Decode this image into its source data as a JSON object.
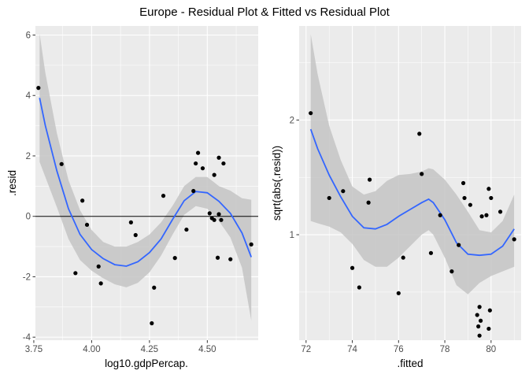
{
  "title": "Europe -  Residual Plot & Fitted vs Residual Plot",
  "colors": {
    "panel_bg": "#ebebeb",
    "grid": "#ffffff",
    "band": "#c4c4c4",
    "smooth": "#3366ff",
    "point": "#000000",
    "hline": "#000000"
  },
  "chart_data": [
    {
      "type": "scatter",
      "xlabel": "log10.gdpPercap.",
      "ylabel": ".resid",
      "xlim": [
        3.757,
        4.72
      ],
      "ylim": [
        -4.1,
        6.3
      ],
      "xticks": [
        3.75,
        4.0,
        4.25,
        4.5
      ],
      "xtick_labels": [
        "3.75",
        "4.00",
        "4.25",
        "4.50"
      ],
      "yticks": [
        -4,
        -2,
        0,
        2,
        4,
        6
      ],
      "ytick_labels": [
        "-4",
        "-2",
        "0",
        "2",
        "4",
        "6"
      ],
      "hline": 0,
      "points": [
        [
          3.77,
          4.25
        ],
        [
          3.87,
          1.73
        ],
        [
          3.93,
          -1.88
        ],
        [
          3.96,
          0.52
        ],
        [
          3.98,
          -0.28
        ],
        [
          4.03,
          -1.66
        ],
        [
          4.04,
          -2.22
        ],
        [
          4.17,
          -0.2
        ],
        [
          4.19,
          -0.62
        ],
        [
          4.26,
          -3.54
        ],
        [
          4.27,
          -2.36
        ],
        [
          4.31,
          0.68
        ],
        [
          4.36,
          -1.38
        ],
        [
          4.41,
          -0.44
        ],
        [
          4.44,
          0.84
        ],
        [
          4.45,
          1.75
        ],
        [
          4.46,
          2.1
        ],
        [
          4.48,
          1.59
        ],
        [
          4.51,
          0.1
        ],
        [
          4.52,
          -0.06
        ],
        [
          4.53,
          -0.12
        ],
        [
          4.53,
          1.37
        ],
        [
          4.545,
          -1.37
        ],
        [
          4.55,
          0.07
        ],
        [
          4.55,
          1.94
        ],
        [
          4.56,
          -0.12
        ],
        [
          4.57,
          1.75
        ],
        [
          4.6,
          -1.42
        ],
        [
          4.69,
          -0.93
        ]
      ],
      "smooth": [
        [
          3.775,
          3.92
        ],
        [
          3.8,
          3.0
        ],
        [
          3.85,
          1.5
        ],
        [
          3.9,
          0.25
        ],
        [
          3.95,
          -0.6
        ],
        [
          4.0,
          -1.1
        ],
        [
          4.05,
          -1.4
        ],
        [
          4.1,
          -1.6
        ],
        [
          4.15,
          -1.65
        ],
        [
          4.2,
          -1.5
        ],
        [
          4.25,
          -1.2
        ],
        [
          4.3,
          -0.75
        ],
        [
          4.35,
          -0.1
        ],
        [
          4.4,
          0.52
        ],
        [
          4.45,
          0.82
        ],
        [
          4.5,
          0.78
        ],
        [
          4.55,
          0.5
        ],
        [
          4.6,
          0.1
        ],
        [
          4.65,
          -0.55
        ],
        [
          4.69,
          -1.35
        ]
      ],
      "band_upper": [
        [
          3.775,
          6.05
        ],
        [
          3.8,
          4.75
        ],
        [
          3.85,
          2.75
        ],
        [
          3.9,
          1.2
        ],
        [
          3.95,
          0.2
        ],
        [
          4.0,
          -0.45
        ],
        [
          4.05,
          -0.85
        ],
        [
          4.1,
          -1.0
        ],
        [
          4.15,
          -1.0
        ],
        [
          4.2,
          -0.85
        ],
        [
          4.25,
          -0.6
        ],
        [
          4.3,
          -0.2
        ],
        [
          4.35,
          0.35
        ],
        [
          4.4,
          1.0
        ],
        [
          4.45,
          1.3
        ],
        [
          4.5,
          1.3
        ],
        [
          4.55,
          1.0
        ],
        [
          4.6,
          0.85
        ],
        [
          4.65,
          0.6
        ],
        [
          4.69,
          0.55
        ]
      ],
      "band_lower": [
        [
          3.775,
          1.8
        ],
        [
          3.8,
          1.3
        ],
        [
          3.85,
          0.3
        ],
        [
          3.9,
          -0.75
        ],
        [
          3.95,
          -1.45
        ],
        [
          4.0,
          -1.8
        ],
        [
          4.05,
          -2.05
        ],
        [
          4.1,
          -2.25
        ],
        [
          4.15,
          -2.35
        ],
        [
          4.2,
          -2.2
        ],
        [
          4.25,
          -1.85
        ],
        [
          4.3,
          -1.3
        ],
        [
          4.35,
          -0.6
        ],
        [
          4.4,
          0.05
        ],
        [
          4.45,
          0.34
        ],
        [
          4.5,
          0.25
        ],
        [
          4.55,
          -0.15
        ],
        [
          4.6,
          -0.7
        ],
        [
          4.65,
          -1.7
        ],
        [
          4.69,
          -3.45
        ]
      ]
    },
    {
      "type": "scatter",
      "xlabel": ".fitted",
      "ylabel": "sqrt(abs(.resid))",
      "xlim": [
        71.7,
        81.3
      ],
      "ylim": [
        0.08,
        2.82
      ],
      "xticks": [
        72,
        74,
        76,
        78,
        80
      ],
      "xtick_labels": [
        "72",
        "74",
        "76",
        "78",
        "80"
      ],
      "yticks": [
        1,
        2
      ],
      "ytick_labels": [
        "1",
        "2"
      ],
      "points": [
        [
          72.2,
          2.06
        ],
        [
          73.0,
          1.32
        ],
        [
          73.6,
          1.38
        ],
        [
          74.0,
          0.71
        ],
        [
          74.3,
          0.54
        ],
        [
          74.7,
          1.28
        ],
        [
          74.75,
          1.48
        ],
        [
          76.0,
          0.49
        ],
        [
          76.2,
          0.8
        ],
        [
          76.9,
          1.88
        ],
        [
          77.0,
          1.53
        ],
        [
          77.4,
          0.84
        ],
        [
          77.8,
          1.17
        ],
        [
          78.3,
          0.68
        ],
        [
          78.6,
          0.91
        ],
        [
          78.8,
          1.45
        ],
        [
          78.85,
          1.32
        ],
        [
          79.1,
          1.26
        ],
        [
          79.4,
          0.3
        ],
        [
          79.45,
          0.2
        ],
        [
          79.5,
          0.37
        ],
        [
          79.5,
          0.12
        ],
        [
          79.55,
          0.25
        ],
        [
          79.6,
          1.16
        ],
        [
          79.8,
          1.17
        ],
        [
          79.9,
          0.18
        ],
        [
          79.95,
          0.34
        ],
        [
          79.9,
          1.4
        ],
        [
          80.0,
          1.32
        ],
        [
          80.4,
          1.2
        ],
        [
          81.0,
          0.96
        ]
      ],
      "smooth": [
        [
          72.2,
          1.92
        ],
        [
          72.5,
          1.75
        ],
        [
          73.0,
          1.52
        ],
        [
          73.5,
          1.33
        ],
        [
          74.0,
          1.16
        ],
        [
          74.5,
          1.06
        ],
        [
          75.0,
          1.05
        ],
        [
          75.5,
          1.09
        ],
        [
          76.0,
          1.16
        ],
        [
          76.5,
          1.22
        ],
        [
          77.0,
          1.28
        ],
        [
          77.3,
          1.31
        ],
        [
          77.5,
          1.28
        ],
        [
          78.0,
          1.13
        ],
        [
          78.5,
          0.93
        ],
        [
          79.0,
          0.83
        ],
        [
          79.5,
          0.82
        ],
        [
          80.0,
          0.83
        ],
        [
          80.5,
          0.9
        ],
        [
          81.0,
          1.05
        ]
      ],
      "band_upper": [
        [
          72.2,
          2.75
        ],
        [
          72.5,
          2.4
        ],
        [
          73.0,
          1.95
        ],
        [
          73.5,
          1.65
        ],
        [
          74.0,
          1.42
        ],
        [
          74.5,
          1.35
        ],
        [
          75.0,
          1.38
        ],
        [
          75.5,
          1.47
        ],
        [
          76.0,
          1.52
        ],
        [
          76.5,
          1.53
        ],
        [
          77.0,
          1.55
        ],
        [
          77.3,
          1.58
        ],
        [
          77.5,
          1.57
        ],
        [
          78.0,
          1.48
        ],
        [
          78.5,
          1.35
        ],
        [
          79.0,
          1.2
        ],
        [
          79.5,
          1.04
        ],
        [
          80.0,
          1.02
        ],
        [
          80.5,
          1.12
        ],
        [
          81.0,
          1.35
        ]
      ],
      "band_lower": [
        [
          72.2,
          1.12
        ],
        [
          72.5,
          1.1
        ],
        [
          73.0,
          1.07
        ],
        [
          73.5,
          1.02
        ],
        [
          74.0,
          0.92
        ],
        [
          74.5,
          0.78
        ],
        [
          75.0,
          0.72
        ],
        [
          75.5,
          0.72
        ],
        [
          76.0,
          0.8
        ],
        [
          76.5,
          0.9
        ],
        [
          77.0,
          1.0
        ],
        [
          77.3,
          1.04
        ],
        [
          77.5,
          1.0
        ],
        [
          78.0,
          0.8
        ],
        [
          78.5,
          0.56
        ],
        [
          79.0,
          0.48
        ],
        [
          79.5,
          0.58
        ],
        [
          80.0,
          0.64
        ],
        [
          80.5,
          0.68
        ],
        [
          81.0,
          0.72
        ]
      ]
    }
  ]
}
